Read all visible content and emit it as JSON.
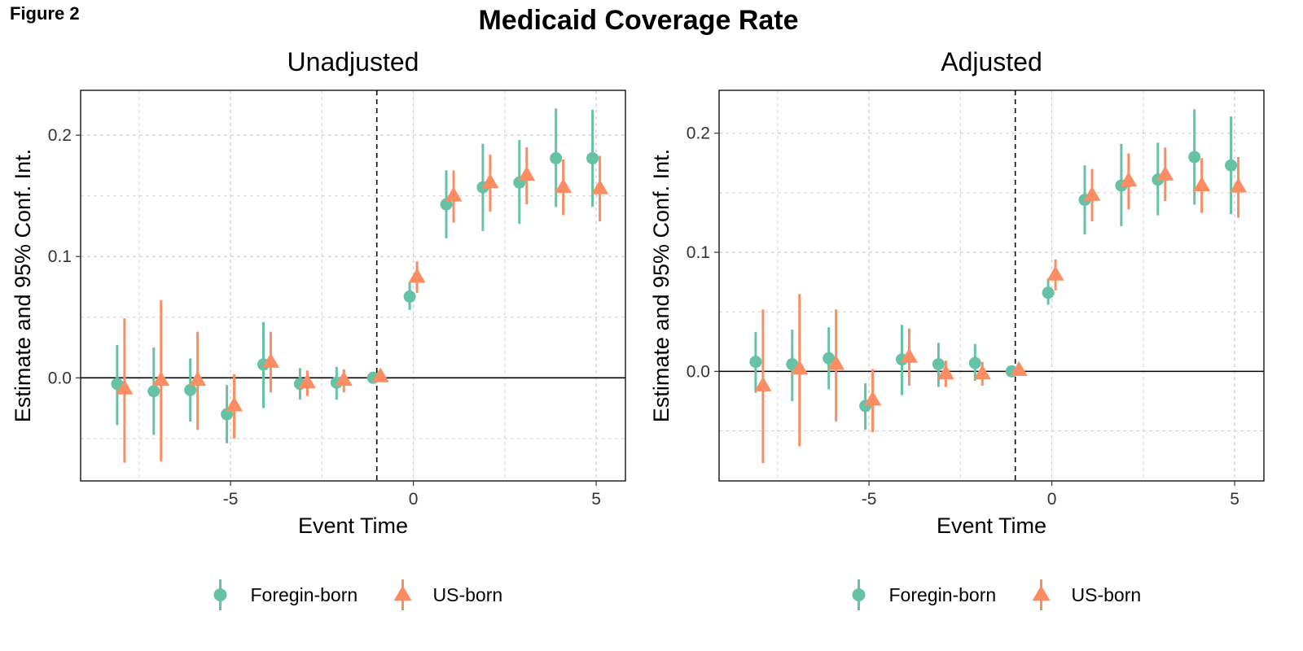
{
  "figure_label": "Figure 2",
  "title": "Medicaid Coverage Rate",
  "colors": {
    "foreign": "#66C2A5",
    "us": "#FC8D62"
  },
  "chart_data": [
    {
      "type": "scatter",
      "panel_title": "Unadjusted",
      "xlabel": "Event Time",
      "ylabel": "Estimate and 95% Conf. Int.",
      "xlim": [
        -9.1,
        5.8
      ],
      "ylim": [
        -0.085,
        0.237
      ],
      "xticks": [
        -5,
        0,
        5
      ],
      "xtick_labels": [
        "-5",
        "0",
        "5"
      ],
      "yticks": [
        0.0,
        0.1,
        0.2
      ],
      "ytick_labels": [
        "0.0",
        "0.1",
        "0.2"
      ],
      "minor_xgrid": [
        -7.5,
        -2.5,
        2.5
      ],
      "minor_ygrid": [
        -0.05,
        0.05,
        0.15
      ],
      "reference_line_x": -1,
      "reference_line_y": 0,
      "grid": true,
      "legend_position": "bottom",
      "series": [
        {
          "name": "Foregin-born",
          "marker": "circle",
          "points": [
            {
              "x": -8,
              "y": -0.005,
              "lo": -0.039,
              "hi": 0.027
            },
            {
              "x": -7,
              "y": -0.011,
              "lo": -0.047,
              "hi": 0.025
            },
            {
              "x": -6,
              "y": -0.01,
              "lo": -0.036,
              "hi": 0.016
            },
            {
              "x": -5,
              "y": -0.03,
              "lo": -0.054,
              "hi": -0.006
            },
            {
              "x": -4,
              "y": 0.011,
              "lo": -0.025,
              "hi": 0.046
            },
            {
              "x": -3,
              "y": -0.005,
              "lo": -0.018,
              "hi": 0.008
            },
            {
              "x": -2,
              "y": -0.004,
              "lo": -0.018,
              "hi": 0.009
            },
            {
              "x": -1,
              "y": 0.0,
              "lo": 0.0,
              "hi": 0.0
            },
            {
              "x": 0,
              "y": 0.067,
              "lo": 0.056,
              "hi": 0.079
            },
            {
              "x": 1,
              "y": 0.143,
              "lo": 0.115,
              "hi": 0.171
            },
            {
              "x": 2,
              "y": 0.157,
              "lo": 0.121,
              "hi": 0.193
            },
            {
              "x": 3,
              "y": 0.161,
              "lo": 0.127,
              "hi": 0.196
            },
            {
              "x": 4,
              "y": 0.181,
              "lo": 0.141,
              "hi": 0.222
            },
            {
              "x": 5,
              "y": 0.181,
              "lo": 0.141,
              "hi": 0.221
            }
          ]
        },
        {
          "name": "US-born",
          "marker": "triangle",
          "points": [
            {
              "x": -8,
              "y": -0.009,
              "lo": -0.07,
              "hi": 0.049
            },
            {
              "x": -7,
              "y": -0.002,
              "lo": -0.069,
              "hi": 0.064
            },
            {
              "x": -6,
              "y": -0.002,
              "lo": -0.043,
              "hi": 0.038
            },
            {
              "x": -5,
              "y": -0.023,
              "lo": -0.05,
              "hi": 0.003
            },
            {
              "x": -4,
              "y": 0.013,
              "lo": -0.012,
              "hi": 0.038
            },
            {
              "x": -3,
              "y": -0.004,
              "lo": -0.015,
              "hi": 0.006
            },
            {
              "x": -2,
              "y": -0.002,
              "lo": -0.012,
              "hi": 0.007
            },
            {
              "x": -1,
              "y": 0.001,
              "lo": 0.001,
              "hi": 0.001
            },
            {
              "x": 0,
              "y": 0.083,
              "lo": 0.07,
              "hi": 0.096
            },
            {
              "x": 1,
              "y": 0.15,
              "lo": 0.128,
              "hi": 0.171
            },
            {
              "x": 2,
              "y": 0.161,
              "lo": 0.137,
              "hi": 0.184
            },
            {
              "x": 3,
              "y": 0.167,
              "lo": 0.143,
              "hi": 0.19
            },
            {
              "x": 4,
              "y": 0.157,
              "lo": 0.134,
              "hi": 0.18
            },
            {
              "x": 5,
              "y": 0.156,
              "lo": 0.129,
              "hi": 0.183
            }
          ]
        }
      ]
    },
    {
      "type": "scatter",
      "panel_title": "Adjusted",
      "xlabel": "Event Time",
      "ylabel": "Estimate and 95% Conf. Int.",
      "xlim": [
        -9.1,
        5.8
      ],
      "ylim": [
        -0.092,
        0.236
      ],
      "xticks": [
        -5,
        0,
        5
      ],
      "xtick_labels": [
        "-5",
        "0",
        "5"
      ],
      "yticks": [
        0.0,
        0.1,
        0.2
      ],
      "ytick_labels": [
        "0.0",
        "0.1",
        "0.2"
      ],
      "minor_xgrid": [
        -7.5,
        -2.5,
        2.5
      ],
      "minor_ygrid": [
        -0.05,
        0.05,
        0.15
      ],
      "reference_line_x": -1,
      "reference_line_y": 0,
      "grid": true,
      "legend_position": "bottom",
      "series": [
        {
          "name": "Foregin-born",
          "marker": "circle",
          "points": [
            {
              "x": -8,
              "y": 0.008,
              "lo": -0.018,
              "hi": 0.033
            },
            {
              "x": -7,
              "y": 0.006,
              "lo": -0.025,
              "hi": 0.035
            },
            {
              "x": -6,
              "y": 0.011,
              "lo": -0.015,
              "hi": 0.037
            },
            {
              "x": -5,
              "y": -0.029,
              "lo": -0.049,
              "hi": -0.01
            },
            {
              "x": -4,
              "y": 0.01,
              "lo": -0.02,
              "hi": 0.039
            },
            {
              "x": -3,
              "y": 0.006,
              "lo": -0.013,
              "hi": 0.024
            },
            {
              "x": -2,
              "y": 0.007,
              "lo": -0.008,
              "hi": 0.023
            },
            {
              "x": -1,
              "y": 0.0,
              "lo": 0.0,
              "hi": 0.0
            },
            {
              "x": 0,
              "y": 0.066,
              "lo": 0.056,
              "hi": 0.078
            },
            {
              "x": 1,
              "y": 0.144,
              "lo": 0.115,
              "hi": 0.173
            },
            {
              "x": 2,
              "y": 0.156,
              "lo": 0.122,
              "hi": 0.191
            },
            {
              "x": 3,
              "y": 0.161,
              "lo": 0.131,
              "hi": 0.192
            },
            {
              "x": 4,
              "y": 0.18,
              "lo": 0.14,
              "hi": 0.22
            },
            {
              "x": 5,
              "y": 0.173,
              "lo": 0.132,
              "hi": 0.214
            }
          ]
        },
        {
          "name": "US-born",
          "marker": "triangle",
          "points": [
            {
              "x": -8,
              "y": -0.012,
              "lo": -0.077,
              "hi": 0.052
            },
            {
              "x": -7,
              "y": 0.002,
              "lo": -0.063,
              "hi": 0.065
            },
            {
              "x": -6,
              "y": 0.006,
              "lo": -0.042,
              "hi": 0.052
            },
            {
              "x": -5,
              "y": -0.024,
              "lo": -0.051,
              "hi": 0.002
            },
            {
              "x": -4,
              "y": 0.012,
              "lo": -0.012,
              "hi": 0.036
            },
            {
              "x": -3,
              "y": -0.002,
              "lo": -0.013,
              "hi": 0.009
            },
            {
              "x": -2,
              "y": -0.002,
              "lo": -0.012,
              "hi": 0.008
            },
            {
              "x": -1,
              "y": 0.001,
              "lo": 0.001,
              "hi": 0.001
            },
            {
              "x": 0,
              "y": 0.081,
              "lo": 0.068,
              "hi": 0.094
            },
            {
              "x": 1,
              "y": 0.148,
              "lo": 0.126,
              "hi": 0.17
            },
            {
              "x": 2,
              "y": 0.16,
              "lo": 0.136,
              "hi": 0.183
            },
            {
              "x": 3,
              "y": 0.165,
              "lo": 0.143,
              "hi": 0.188
            },
            {
              "x": 4,
              "y": 0.156,
              "lo": 0.133,
              "hi": 0.179
            },
            {
              "x": 5,
              "y": 0.155,
              "lo": 0.129,
              "hi": 0.18
            }
          ]
        }
      ]
    }
  ]
}
